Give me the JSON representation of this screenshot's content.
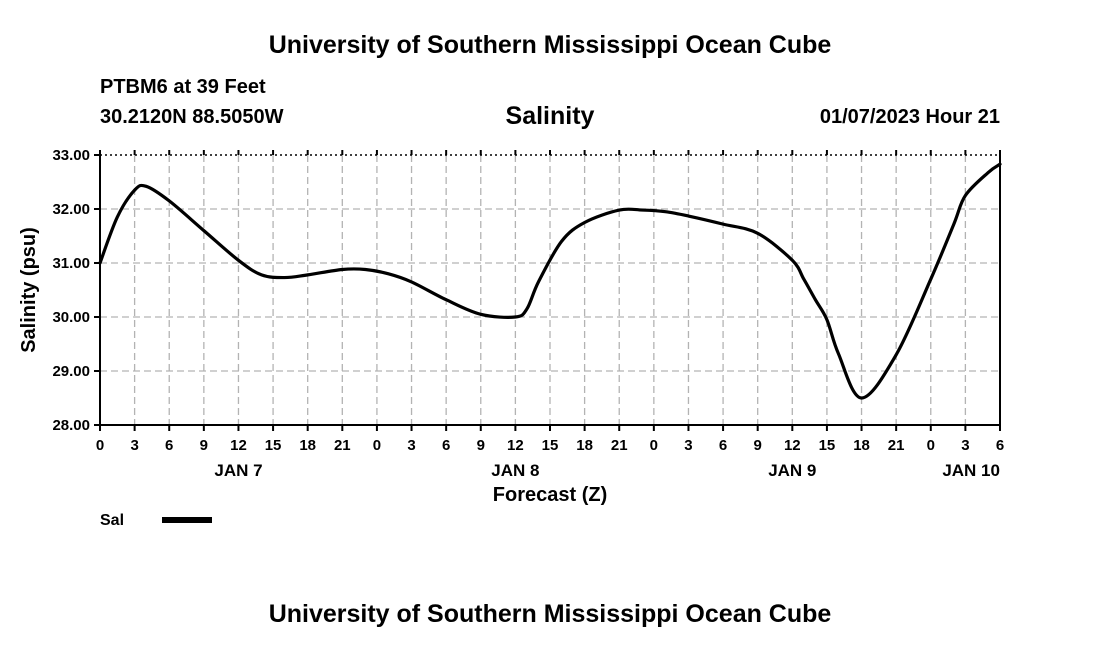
{
  "header": {
    "title": "University of Southern Mississippi Ocean Cube",
    "station": "PTBM6 at 39 Feet",
    "coords": "30.2120N  88.5050W",
    "chart_title": "Salinity",
    "datetime": "01/07/2023 Hour 21"
  },
  "footer": {
    "title": "University of Southern Mississippi Ocean Cube"
  },
  "chart_data": {
    "type": "line",
    "title": "Salinity",
    "xlabel": "Forecast (Z)",
    "ylabel": "Salinity (psu)",
    "ylim": [
      28,
      33
    ],
    "yticks": [
      "28.00",
      "29.00",
      "30.00",
      "31.00",
      "32.00",
      "33.00"
    ],
    "xlim": [
      0,
      78
    ],
    "xtick_labels": [
      "0",
      "3",
      "6",
      "9",
      "12",
      "15",
      "18",
      "21",
      "0",
      "3",
      "6",
      "9",
      "12",
      "15",
      "18",
      "21",
      "0",
      "3",
      "6",
      "9",
      "12",
      "15",
      "18",
      "21",
      "0",
      "3",
      "6"
    ],
    "date_labels": [
      {
        "label": "JAN 7",
        "hour": 12
      },
      {
        "label": "JAN 8",
        "hour": 36
      },
      {
        "label": "JAN 9",
        "hour": 60
      },
      {
        "label": "JAN 10",
        "hour": 75.5
      }
    ],
    "grid": true,
    "legend": [
      {
        "name": "Sal",
        "position": "bottom-left"
      }
    ],
    "series": [
      {
        "name": "Sal",
        "x": [
          0,
          1.5,
          3,
          4,
          6,
          9,
          12,
          14,
          16,
          18,
          21,
          23,
          25,
          27,
          30,
          33,
          36,
          37,
          38,
          40,
          42,
          45,
          47,
          49,
          51,
          54,
          57,
          60,
          61,
          62,
          63,
          64,
          66,
          69,
          72,
          74,
          75,
          77,
          78
        ],
        "values": [
          31.0,
          31.85,
          32.35,
          32.42,
          32.15,
          31.6,
          31.05,
          30.78,
          30.73,
          30.78,
          30.88,
          30.88,
          30.8,
          30.65,
          30.32,
          30.05,
          30.0,
          30.15,
          30.65,
          31.4,
          31.75,
          31.98,
          31.98,
          31.95,
          31.87,
          31.72,
          31.55,
          31.05,
          30.7,
          30.32,
          29.95,
          29.32,
          28.5,
          29.3,
          30.7,
          31.72,
          32.25,
          32.68,
          32.83
        ]
      }
    ]
  }
}
